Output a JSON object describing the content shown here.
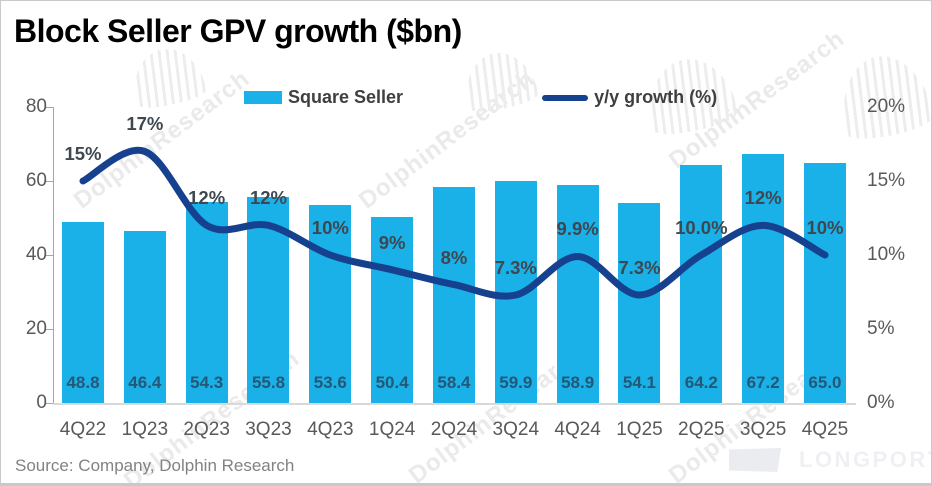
{
  "title": "Block Seller GPV growth  ($bn)",
  "legend": {
    "bar_label": "Square Seller",
    "line_label": "y/y growth (%)"
  },
  "source": "Source: Company, Dolphin Research",
  "watermark": {
    "text": "DolphinResearch",
    "brand": "LONGPORT"
  },
  "colors": {
    "bar": "#1ab0e8",
    "line": "#16418f",
    "axis_text": "#595959",
    "point_label_text": "#3e4850",
    "bar_label_text": "#235977"
  },
  "chart_data": {
    "type": "bar",
    "subtype": "bar+line combo",
    "title": "Block Seller GPV growth  ($bn)",
    "categories": [
      "4Q22",
      "1Q23",
      "2Q23",
      "3Q23",
      "4Q23",
      "1Q24",
      "2Q24",
      "3Q24",
      "4Q24",
      "1Q25",
      "2Q25",
      "3Q25",
      "4Q25"
    ],
    "series": [
      {
        "name": "Square Seller",
        "type": "bar",
        "axis": "left",
        "values": [
          48.8,
          46.4,
          54.3,
          55.8,
          53.6,
          50.4,
          58.4,
          59.9,
          58.9,
          54.1,
          64.2,
          67.2,
          65.0
        ],
        "labels": [
          "48.8",
          "46.4",
          "54.3",
          "55.8",
          "53.6",
          "50.4",
          "58.4",
          "59.9",
          "58.9",
          "54.1",
          "64.2",
          "67.2",
          "65.0"
        ]
      },
      {
        "name": "y/y growth (%)",
        "type": "line",
        "axis": "right",
        "values": [
          15,
          17,
          12,
          12,
          10,
          9,
          8,
          7.3,
          9.9,
          7.3,
          10.0,
          12,
          10
        ],
        "labels": [
          "15%",
          "17%",
          "12%",
          "12%",
          "10%",
          "9%",
          "8%",
          "7.3%",
          "9.9%",
          "7.3%",
          "10.0%",
          "12%",
          "10%"
        ]
      }
    ],
    "left_axis": {
      "min": 0,
      "max": 80,
      "ticks": [
        "80",
        "60",
        "40",
        "20",
        "0"
      ]
    },
    "right_axis": {
      "min": 0,
      "max": 20,
      "ticks": [
        "20%",
        "15%",
        "10%",
        "5%",
        "0%"
      ]
    },
    "grid": false,
    "legend_position": "top"
  }
}
